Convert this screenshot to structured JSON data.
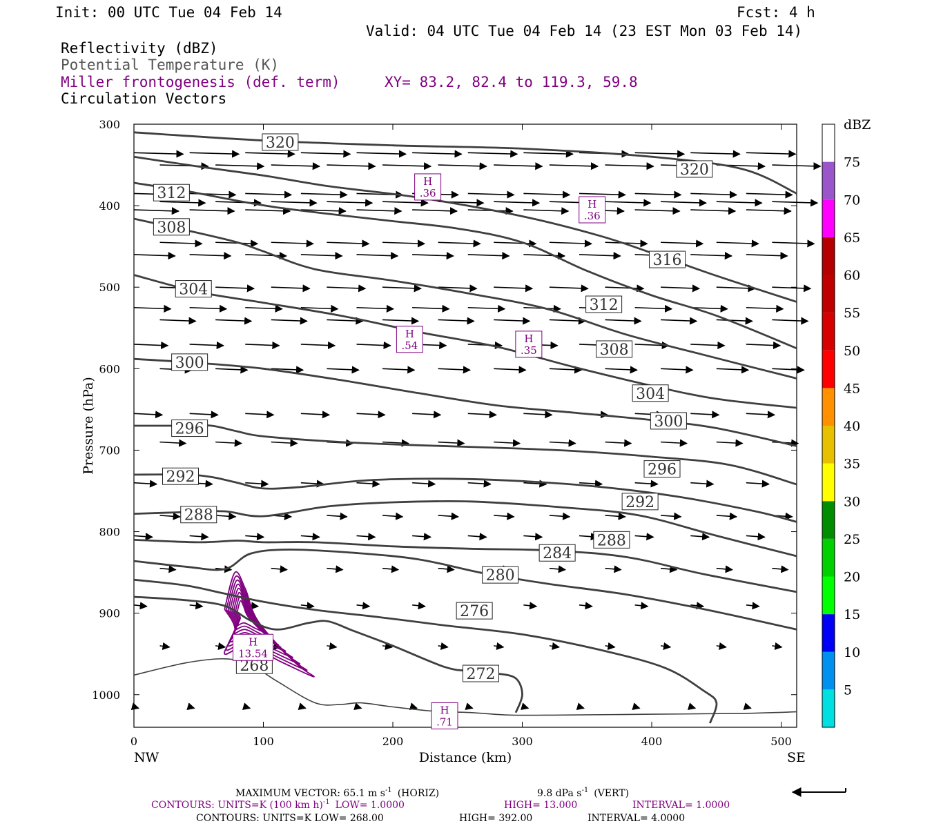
{
  "header": {
    "init": "Init: 00 UTC Tue 04 Feb 14",
    "fcst": "Fcst:    4 h",
    "valid": "Valid: 04 UTC Tue 04 Feb 14 (23 EST Mon 03 Feb 14)",
    "field1": "Reflectivity (dBZ)",
    "field2": "Potential Temperature (K)",
    "field3": "Miller frontogenesis (def. term)",
    "xy": "XY=  83.2, 82.4 to 119.3, 59.8",
    "field4": "Circulation Vectors"
  },
  "colors": {
    "theta": "#3f3f3f",
    "frontogenesis": "#800080",
    "ptemp_title": "#555555"
  },
  "colorbar": {
    "unit": "dBZ",
    "levels": [
      {
        "label": "5",
        "color": "#00e0e0"
      },
      {
        "label": "10",
        "color": "#0090f0"
      },
      {
        "label": "15",
        "color": "#0000f6"
      },
      {
        "label": "20",
        "color": "#00ff00"
      },
      {
        "label": "25",
        "color": "#00d000"
      },
      {
        "label": "30",
        "color": "#008e00"
      },
      {
        "label": "35",
        "color": "#ffff00"
      },
      {
        "label": "40",
        "color": "#e7c000"
      },
      {
        "label": "45",
        "color": "#ff9000"
      },
      {
        "label": "50",
        "color": "#ff0000"
      },
      {
        "label": "55",
        "color": "#d60000"
      },
      {
        "label": "60",
        "color": "#c00000"
      },
      {
        "label": "65",
        "color": "#b40000"
      },
      {
        "label": "70",
        "color": "#ff00ff"
      },
      {
        "label": "75",
        "color": "#9955c9"
      }
    ]
  },
  "chart_data": {
    "type": "cross-section",
    "xlabel": "Distance (km)",
    "ylabel": "Pressure (hPa)",
    "xlim": [
      0,
      512
    ],
    "ylim": [
      1040,
      300
    ],
    "x_ticks": [
      0,
      100,
      200,
      300,
      400,
      500
    ],
    "y_ticks": [
      300,
      400,
      500,
      600,
      700,
      800,
      900,
      1000
    ],
    "x_endpoints": {
      "left": "NW",
      "right": "SE"
    },
    "theta_contours": [
      {
        "label": "320",
        "points": [
          [
            0,
            310
          ],
          [
            100,
            320
          ],
          [
            200,
            326
          ],
          [
            300,
            330
          ],
          [
            400,
            340
          ],
          [
            470,
            355
          ],
          [
            512,
            385
          ]
        ],
        "labels": [
          [
            113,
            322
          ],
          [
            433,
            355
          ]
        ]
      },
      {
        "label": "316",
        "points": [
          [
            0,
            340
          ],
          [
            50,
            352
          ],
          [
            100,
            363
          ],
          [
            150,
            376
          ],
          [
            220,
            390
          ],
          [
            300,
            413
          ],
          [
            360,
            437
          ],
          [
            400,
            458
          ],
          [
            450,
            486
          ],
          [
            512,
            518
          ]
        ],
        "labels": [
          [
            412,
            466
          ]
        ]
      },
      {
        "label": "312",
        "points": [
          [
            0,
            372
          ],
          [
            40,
            382
          ],
          [
            80,
            394
          ],
          [
            110,
            402
          ],
          [
            150,
            410
          ],
          [
            200,
            419
          ],
          [
            250,
            428
          ],
          [
            300,
            445
          ],
          [
            350,
            480
          ],
          [
            400,
            510
          ],
          [
            450,
            535
          ],
          [
            512,
            575
          ]
        ],
        "labels": [
          [
            29,
            384
          ],
          [
            363,
            521
          ]
        ]
      },
      {
        "label": "308",
        "points": [
          [
            0,
            416
          ],
          [
            40,
            430
          ],
          [
            80,
            445
          ],
          [
            100,
            456
          ],
          [
            140,
            478
          ],
          [
            200,
            492
          ],
          [
            260,
            508
          ],
          [
            320,
            527
          ],
          [
            380,
            558
          ],
          [
            440,
            583
          ],
          [
            512,
            612
          ]
        ],
        "labels": [
          [
            29,
            426
          ],
          [
            371,
            576
          ]
        ]
      },
      {
        "label": "304",
        "points": [
          [
            0,
            485
          ],
          [
            50,
            506
          ],
          [
            100,
            519
          ],
          [
            160,
            535
          ],
          [
            220,
            555
          ],
          [
            280,
            573
          ],
          [
            340,
            598
          ],
          [
            400,
            621
          ],
          [
            450,
            637
          ],
          [
            512,
            648
          ]
        ],
        "labels": [
          [
            46,
            502
          ],
          [
            399,
            630
          ]
        ]
      },
      {
        "label": "300",
        "points": [
          [
            0,
            588
          ],
          [
            50,
            593
          ],
          [
            100,
            600
          ],
          [
            160,
            614
          ],
          [
            220,
            630
          ],
          [
            280,
            645
          ],
          [
            340,
            654
          ],
          [
            400,
            663
          ],
          [
            450,
            673
          ],
          [
            512,
            695
          ]
        ],
        "labels": [
          [
            43,
            592
          ],
          [
            413,
            664
          ]
        ]
      },
      {
        "label": "296",
        "points": [
          [
            0,
            670
          ],
          [
            40,
            670
          ],
          [
            60,
            670
          ],
          [
            80,
            677
          ],
          [
            100,
            683
          ],
          [
            160,
            690
          ],
          [
            220,
            694
          ],
          [
            280,
            697
          ],
          [
            340,
            701
          ],
          [
            400,
            708
          ],
          [
            460,
            718
          ],
          [
            512,
            742
          ]
        ],
        "labels": [
          [
            43,
            673
          ],
          [
            408,
            723
          ]
        ]
      },
      {
        "label": "292",
        "points": [
          [
            0,
            730
          ],
          [
            40,
            730
          ],
          [
            60,
            733
          ],
          [
            80,
            740
          ],
          [
            100,
            747
          ],
          [
            130,
            745
          ],
          [
            180,
            737
          ],
          [
            240,
            735
          ],
          [
            300,
            738
          ],
          [
            360,
            745
          ],
          [
            420,
            757
          ],
          [
            480,
            775
          ],
          [
            512,
            788
          ]
        ],
        "labels": [
          [
            36,
            732
          ],
          [
            391,
            763
          ]
        ]
      },
      {
        "label": "288",
        "points": [
          [
            0,
            778
          ],
          [
            40,
            776
          ],
          [
            70,
            775
          ],
          [
            100,
            781
          ],
          [
            150,
            769
          ],
          [
            200,
            764
          ],
          [
            260,
            763
          ],
          [
            330,
            770
          ],
          [
            390,
            780
          ],
          [
            450,
            805
          ],
          [
            512,
            830
          ]
        ],
        "labels": [
          [
            50,
            779
          ],
          [
            369,
            810
          ]
        ]
      },
      {
        "label": "284",
        "points": [
          [
            0,
            810
          ],
          [
            50,
            813
          ],
          [
            80,
            811
          ],
          [
            100,
            813
          ],
          [
            140,
            813
          ],
          [
            200,
            818
          ],
          [
            260,
            821
          ],
          [
            320,
            823
          ],
          [
            380,
            831
          ],
          [
            440,
            852
          ],
          [
            512,
            874
          ]
        ],
        "labels": [
          [
            327,
            826
          ]
        ]
      },
      {
        "label": "280",
        "points": [
          [
            0,
            836
          ],
          [
            40,
            843
          ],
          [
            70,
            846
          ],
          [
            90,
            827
          ],
          [
            120,
            822
          ],
          [
            170,
            826
          ],
          [
            220,
            834
          ],
          [
            270,
            851
          ],
          [
            320,
            864
          ],
          [
            380,
            877
          ],
          [
            440,
            895
          ],
          [
            512,
            920
          ]
        ],
        "labels": [
          [
            283,
            853
          ]
        ]
      },
      {
        "label": "276",
        "points": [
          [
            0,
            859
          ],
          [
            40,
            866
          ],
          [
            70,
            876
          ],
          [
            100,
            886
          ],
          [
            140,
            896
          ],
          [
            190,
            905
          ],
          [
            240,
            915
          ],
          [
            300,
            926
          ],
          [
            360,
            945
          ],
          [
            410,
            967
          ],
          [
            440,
            995
          ],
          [
            450,
            1010
          ],
          [
            445,
            1035
          ]
        ],
        "labels": [
          [
            263,
            897
          ]
        ]
      },
      {
        "label": "272",
        "points": [
          [
            0,
            880
          ],
          [
            40,
            884
          ],
          [
            70,
            891
          ],
          [
            90,
            909
          ],
          [
            110,
            920
          ],
          [
            135,
            912
          ],
          [
            150,
            910
          ],
          [
            170,
            922
          ],
          [
            200,
            940
          ],
          [
            240,
            966
          ],
          [
            260,
            971
          ],
          [
            280,
            974
          ],
          [
            295,
            980
          ],
          [
            300,
            1000
          ],
          [
            295,
            1022
          ]
        ],
        "labels": [
          [
            268,
            974
          ]
        ]
      }
    ],
    "theta_268": {
      "label": "268",
      "points": [
        [
          0,
          976
        ],
        [
          40,
          961
        ],
        [
          70,
          956
        ],
        [
          90,
          963
        ],
        [
          110,
          983
        ],
        [
          140,
          1010
        ],
        [
          160,
          1012
        ],
        [
          175,
          1010
        ],
        [
          200,
          1015
        ],
        [
          230,
          1020
        ],
        [
          260,
          1022
        ],
        [
          290,
          1025
        ],
        [
          330,
          1025
        ],
        [
          400,
          1024
        ],
        [
          470,
          1023
        ],
        [
          512,
          1021
        ]
      ],
      "labels": [
        [
          93,
          964
        ]
      ]
    },
    "frontogenesis_highs": [
      {
        "label": "H",
        "value": ".36",
        "x": 227,
        "y": 377
      },
      {
        "label": "H",
        "value": ".36",
        "x": 354,
        "y": 405
      },
      {
        "label": "H",
        "value": ".54",
        "x": 213,
        "y": 564
      },
      {
        "label": "H",
        "value": ".35",
        "x": 305,
        "y": 570
      },
      {
        "label": "H",
        "value": "13.54",
        "x": 92,
        "y": 942
      },
      {
        "label": "H",
        "value": ".71",
        "x": 240,
        "y": 1026
      }
    ]
  },
  "vectors_title": "Circulation Vectors",
  "footer": {
    "max_vector": "MAXIMUM VECTOR:  65.1 m s",
    "horiz": "(HORIZ)",
    "vert": "9.8 dPa s",
    "vert_unit": "(VERT)",
    "sup": "-1",
    "cont1": "CONTOURS:  UNITS=K (100 km h)",
    "cont1_low": "LOW=   1.0000",
    "cont1_high": "HIGH=  13.000",
    "cont1_int": "INTERVAL=    1.0000",
    "cont2": "CONTOURS:  UNITS=K  LOW=   268.00",
    "cont2_high": "HIGH=  392.00",
    "cont2_int": "INTERVAL=    4.0000"
  }
}
